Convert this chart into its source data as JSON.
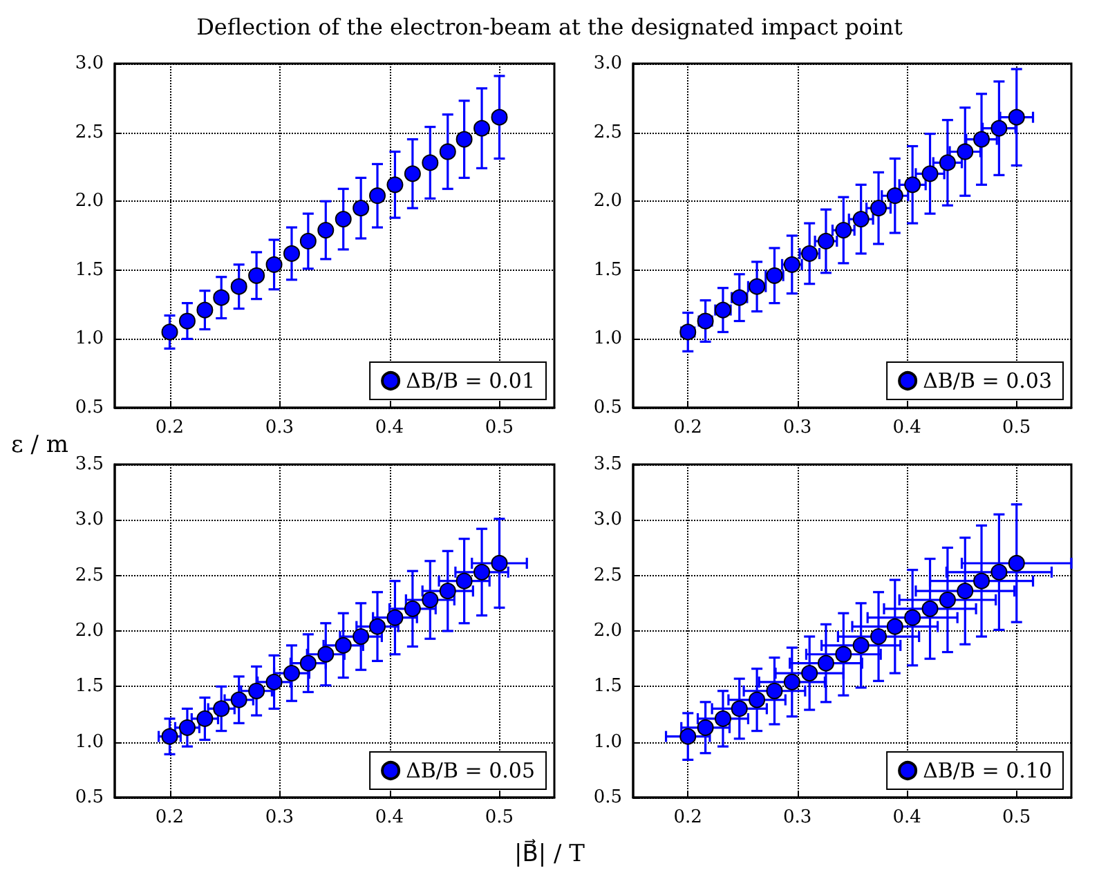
{
  "chart_data": [
    {
      "type": "scatter",
      "title": "Deflection of the electron-beam at the designated impact point",
      "x": [
        0.2,
        0.216,
        0.232,
        0.247,
        0.263,
        0.279,
        0.295,
        0.311,
        0.326,
        0.342,
        0.358,
        0.374,
        0.389,
        0.405,
        0.421,
        0.437,
        0.453,
        0.468,
        0.484,
        0.5
      ],
      "xlim": [
        0.15,
        0.55
      ],
      "xticks": [
        0.2,
        0.3,
        0.4,
        0.5
      ],
      "ylim": [
        0.5,
        3.0
      ],
      "yticks": [
        0.5,
        {
          "value": 1,
          "label": "1.0"
        },
        1.5,
        {
          "value": 2,
          "label": "2.0"
        },
        2.5,
        {
          "value": 3,
          "label": "3.0"
        }
      ],
      "grid": true,
      "legend": "bottom right",
      "marker": "circle",
      "series": [
        {
          "name": "ΔB/B = 0.01",
          "color": "#0000ff",
          "values": [
            1.05,
            1.13,
            1.21,
            1.3,
            1.38,
            1.46,
            1.54,
            1.62,
            1.71,
            1.79,
            1.87,
            1.95,
            2.04,
            2.12,
            2.2,
            2.28,
            2.36,
            2.45,
            2.53,
            2.61
          ],
          "errors": [
            0.12,
            0.13,
            0.14,
            0.15,
            0.16,
            0.17,
            0.18,
            0.19,
            0.2,
            0.21,
            0.22,
            0.22,
            0.23,
            0.24,
            0.25,
            0.26,
            0.27,
            0.28,
            0.29,
            0.3
          ]
        }
      ]
    },
    {
      "type": "scatter",
      "x": [
        0.2,
        0.216,
        0.232,
        0.247,
        0.263,
        0.279,
        0.295,
        0.311,
        0.326,
        0.342,
        0.358,
        0.374,
        0.389,
        0.405,
        0.421,
        0.437,
        0.453,
        0.468,
        0.484,
        0.5
      ],
      "xlim": [
        0.15,
        0.55
      ],
      "xticks": [
        0.2,
        0.3,
        0.4,
        0.5
      ],
      "ylim": [
        0.5,
        3.0
      ],
      "yticks": [
        0.5,
        {
          "value": 1,
          "label": "1.0"
        },
        1.5,
        {
          "value": 2,
          "label": "2.0"
        },
        2.5,
        {
          "value": 3,
          "label": "3.0"
        }
      ],
      "grid": true,
      "legend": "bottom right",
      "marker": "circle",
      "series": [
        {
          "name": "ΔB/B = 0.03",
          "color": "#0000ff",
          "values": [
            1.05,
            1.13,
            1.21,
            1.3,
            1.38,
            1.46,
            1.54,
            1.62,
            1.71,
            1.79,
            1.87,
            1.95,
            2.04,
            2.12,
            2.2,
            2.28,
            2.36,
            2.45,
            2.53,
            2.61
          ],
          "errors": [
            0.14,
            0.15,
            0.16,
            0.17,
            0.18,
            0.2,
            0.21,
            0.22,
            0.23,
            0.24,
            0.25,
            0.26,
            0.27,
            0.28,
            0.29,
            0.31,
            0.32,
            0.33,
            0.34,
            0.35
          ],
          "xerrors": [
            0.006,
            0.006,
            0.007,
            0.007,
            0.008,
            0.008,
            0.009,
            0.009,
            0.01,
            0.01,
            0.011,
            0.011,
            0.012,
            0.012,
            0.013,
            0.013,
            0.014,
            0.014,
            0.015,
            0.015
          ]
        }
      ]
    },
    {
      "type": "scatter",
      "xlabel": "|B⃗| / T",
      "ylabel": "ε / m",
      "x": [
        0.2,
        0.216,
        0.232,
        0.247,
        0.263,
        0.279,
        0.295,
        0.311,
        0.326,
        0.342,
        0.358,
        0.374,
        0.389,
        0.405,
        0.421,
        0.437,
        0.453,
        0.468,
        0.484,
        0.5
      ],
      "xlim": [
        0.15,
        0.55
      ],
      "xticks": [
        0.2,
        0.3,
        0.4,
        0.5
      ],
      "ylim": [
        0.5,
        3.5
      ],
      "yticks": [
        0.5,
        {
          "value": 1,
          "label": "1.0"
        },
        1.5,
        {
          "value": 2,
          "label": "2.0"
        },
        2.5,
        {
          "value": 3,
          "label": "3.0"
        },
        3.5
      ],
      "grid": true,
      "legend": "bottom right",
      "marker": "circle",
      "series": [
        {
          "name": "ΔB/B = 0.05",
          "color": "#0000ff",
          "values": [
            1.05,
            1.13,
            1.21,
            1.3,
            1.38,
            1.46,
            1.54,
            1.62,
            1.71,
            1.79,
            1.87,
            1.95,
            2.04,
            2.12,
            2.2,
            2.28,
            2.36,
            2.45,
            2.53,
            2.61
          ],
          "errors": [
            0.16,
            0.17,
            0.19,
            0.2,
            0.21,
            0.22,
            0.24,
            0.25,
            0.26,
            0.28,
            0.29,
            0.3,
            0.31,
            0.33,
            0.34,
            0.35,
            0.36,
            0.38,
            0.39,
            0.4
          ],
          "xerrors": [
            0.01,
            0.011,
            0.012,
            0.012,
            0.013,
            0.014,
            0.015,
            0.016,
            0.016,
            0.017,
            0.018,
            0.019,
            0.019,
            0.02,
            0.021,
            0.022,
            0.023,
            0.023,
            0.024,
            0.025
          ]
        }
      ]
    },
    {
      "type": "scatter",
      "x": [
        0.2,
        0.216,
        0.232,
        0.247,
        0.263,
        0.279,
        0.295,
        0.311,
        0.326,
        0.342,
        0.358,
        0.374,
        0.389,
        0.405,
        0.421,
        0.437,
        0.453,
        0.468,
        0.484,
        0.5
      ],
      "xlim": [
        0.15,
        0.55
      ],
      "xticks": [
        0.2,
        0.3,
        0.4,
        0.5
      ],
      "ylim": [
        0.5,
        3.5
      ],
      "yticks": [
        0.5,
        {
          "value": 1,
          "label": "1.0"
        },
        1.5,
        {
          "value": 2,
          "label": "2.0"
        },
        2.5,
        {
          "value": 3,
          "label": "3.0"
        },
        3.5
      ],
      "grid": true,
      "legend": "bottom right",
      "marker": "circle",
      "series": [
        {
          "name": "ΔB/B = 0.10",
          "color": "#0000ff",
          "values": [
            1.05,
            1.13,
            1.21,
            1.3,
            1.38,
            1.46,
            1.54,
            1.62,
            1.71,
            1.79,
            1.87,
            1.95,
            2.04,
            2.12,
            2.2,
            2.28,
            2.36,
            2.45,
            2.53,
            2.61
          ],
          "errors": [
            0.21,
            0.23,
            0.25,
            0.27,
            0.28,
            0.3,
            0.31,
            0.33,
            0.35,
            0.37,
            0.38,
            0.4,
            0.42,
            0.43,
            0.45,
            0.47,
            0.48,
            0.5,
            0.52,
            0.53
          ],
          "xerrors": [
            0.02,
            0.022,
            0.023,
            0.025,
            0.026,
            0.028,
            0.03,
            0.031,
            0.033,
            0.034,
            0.036,
            0.037,
            0.039,
            0.041,
            0.042,
            0.044,
            0.045,
            0.047,
            0.048,
            0.05
          ]
        }
      ]
    }
  ]
}
